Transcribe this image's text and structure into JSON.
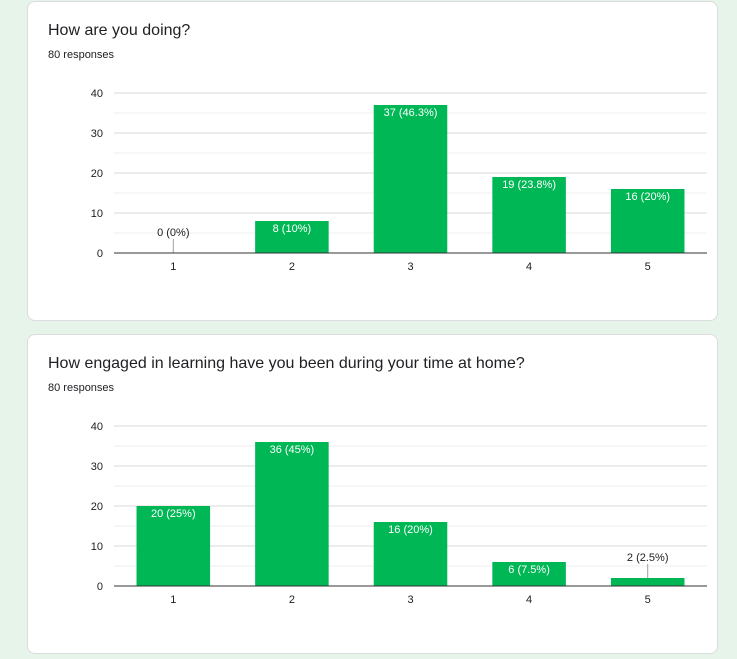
{
  "questions": [
    {
      "title": "How are you doing?",
      "responses": "80 responses"
    },
    {
      "title": "How engaged in learning have you been during your time at home?",
      "responses": "80 responses"
    }
  ],
  "colors": {
    "bar": "#00b755",
    "grid": "#e0e0e0",
    "axis": "#333333"
  },
  "chart_data": [
    {
      "type": "bar",
      "categories": [
        "1",
        "2",
        "3",
        "4",
        "5"
      ],
      "values": [
        0,
        8,
        37,
        19,
        16
      ],
      "data_labels": [
        "0 (0%)",
        "8 (10%)",
        "37 (46.3%)",
        "19 (23.8%)",
        "16 (20%)"
      ],
      "yticks": [
        0,
        10,
        20,
        30,
        40
      ],
      "ylim": [
        0,
        40
      ],
      "grid": true,
      "title": "How are you doing?"
    },
    {
      "type": "bar",
      "categories": [
        "1",
        "2",
        "3",
        "4",
        "5"
      ],
      "values": [
        20,
        36,
        16,
        6,
        2
      ],
      "data_labels": [
        "20 (25%)",
        "36 (45%)",
        "16 (20%)",
        "6 (7.5%)",
        "2 (2.5%)"
      ],
      "yticks": [
        0,
        10,
        20,
        30,
        40
      ],
      "ylim": [
        0,
        40
      ],
      "grid": true,
      "title": "How engaged in learning have you been during your time at home?"
    }
  ]
}
